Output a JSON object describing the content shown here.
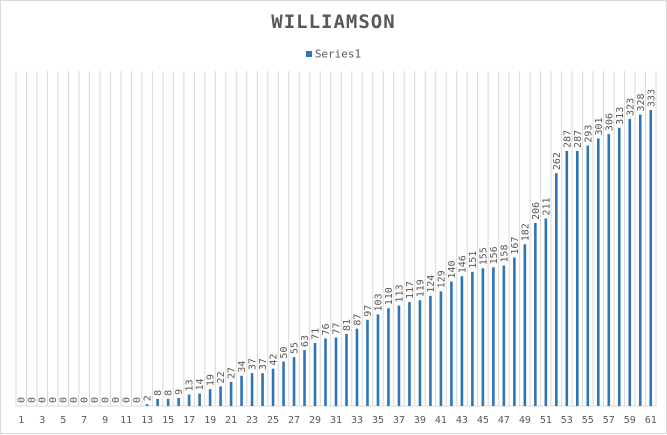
{
  "chart_data": {
    "type": "bar",
    "title": "WILLIAMSON",
    "xlabel": "",
    "ylabel": "",
    "legend": {
      "position": "top",
      "entries": [
        "Series1"
      ]
    },
    "series": [
      {
        "name": "Series1",
        "values": [
          0,
          0,
          0,
          0,
          0,
          0,
          0,
          0,
          0,
          0,
          0,
          0,
          2,
          8,
          8,
          9,
          13,
          14,
          19,
          22,
          27,
          34,
          37,
          37,
          42,
          50,
          55,
          63,
          71,
          76,
          77,
          81,
          87,
          97,
          103,
          110,
          113,
          117,
          119,
          124,
          129,
          140,
          146,
          151,
          155,
          156,
          158,
          167,
          182,
          206,
          211,
          262,
          287,
          287,
          293,
          301,
          306,
          313,
          323,
          328,
          333
        ]
      }
    ],
    "categories": [
      "1",
      "2",
      "3",
      "4",
      "5",
      "6",
      "7",
      "8",
      "9",
      "10",
      "11",
      "12",
      "13",
      "14",
      "15",
      "16",
      "17",
      "18",
      "19",
      "20",
      "21",
      "22",
      "23",
      "24",
      "25",
      "26",
      "27",
      "28",
      "29",
      "30",
      "31",
      "32",
      "33",
      "34",
      "35",
      "36",
      "37",
      "38",
      "39",
      "40",
      "41",
      "42",
      "43",
      "44",
      "45",
      "46",
      "47",
      "48",
      "49",
      "50",
      "51",
      "52",
      "53",
      "54",
      "55",
      "56",
      "57",
      "58",
      "59",
      "60",
      "61"
    ],
    "x_tick_labels": [
      "1",
      "3",
      "5",
      "7",
      "9",
      "11",
      "13",
      "15",
      "17",
      "19",
      "21",
      "23",
      "25",
      "27",
      "29",
      "31",
      "33",
      "35",
      "37",
      "39",
      "41",
      "43",
      "45",
      "47",
      "49",
      "51",
      "53",
      "55",
      "57",
      "59",
      "61"
    ],
    "ylim": [
      0,
      360
    ],
    "vertical_gridlines": true,
    "data_labels": true,
    "colors": {
      "bar": "#2e75b6",
      "grid": "#d9d9d9",
      "text": "#595959"
    }
  }
}
